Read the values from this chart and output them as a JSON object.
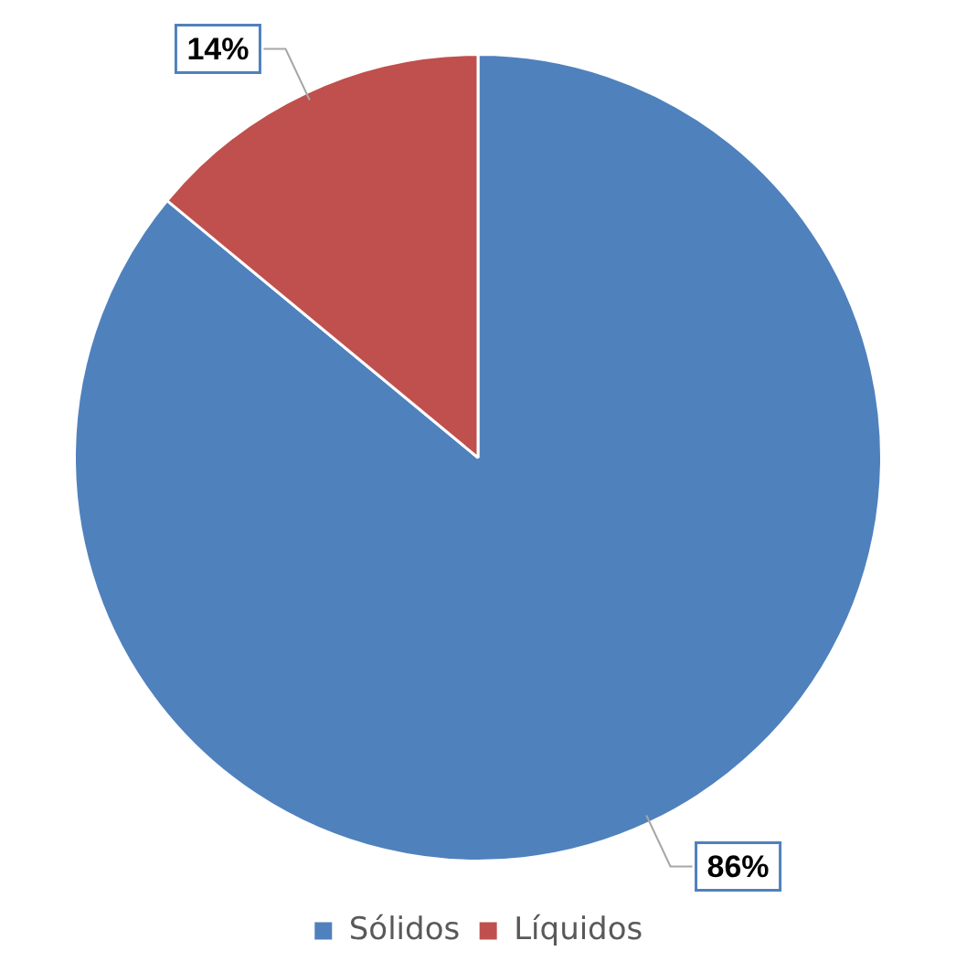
{
  "chart_data": {
    "type": "pie",
    "categories": [
      "Sólidos",
      "Líquidos"
    ],
    "values": [
      86,
      14
    ],
    "colors": [
      "#4f81bd",
      "#c0504d"
    ],
    "value_labels": [
      "86%",
      "14%"
    ],
    "legend": "bottom"
  }
}
